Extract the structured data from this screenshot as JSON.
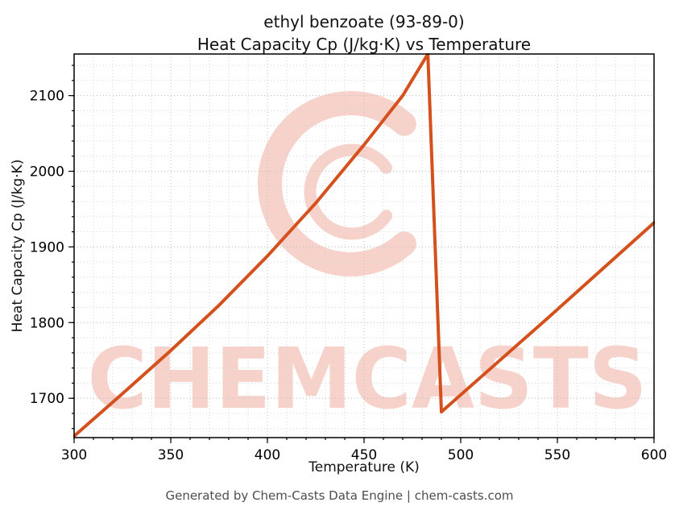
{
  "chart_data": {
    "type": "line",
    "title_line1": "ethyl benzoate (93-89-0)",
    "title_line2": "Heat Capacity Cp (J/kg·K) vs Temperature",
    "xlabel": "Temperature (K)",
    "ylabel": "Heat Capacity Cp (J/kg·K)",
    "footer": "Generated by Chem-Casts Data Engine | chem-casts.com",
    "xlim": [
      300,
      600
    ],
    "ylim": [
      1648,
      2155
    ],
    "xticks": [
      300,
      350,
      400,
      450,
      500,
      550,
      600
    ],
    "yticks": [
      1700,
      1800,
      1900,
      2000,
      2100
    ],
    "x_minor_step": 10,
    "y_minor_step": 20,
    "grid": true,
    "line_color": "#d4511e",
    "watermark": {
      "text": "CHEMCASTS",
      "color": "#e05535"
    },
    "series": [
      {
        "name": "Heat Capacity Cp",
        "points": [
          [
            300,
            1650
          ],
          [
            325,
            1706
          ],
          [
            350,
            1763
          ],
          [
            375,
            1823
          ],
          [
            400,
            1888
          ],
          [
            425,
            1958
          ],
          [
            450,
            2035
          ],
          [
            470,
            2100
          ],
          [
            483,
            2155
          ],
          [
            490,
            1682
          ],
          [
            545,
            1806
          ],
          [
            600,
            1932
          ]
        ]
      }
    ]
  }
}
